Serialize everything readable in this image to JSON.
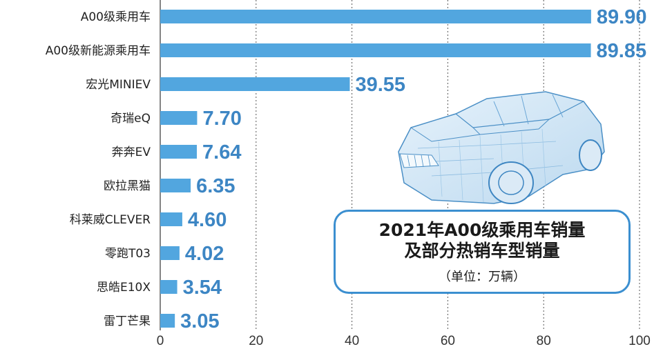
{
  "chart_data": {
    "type": "bar",
    "orientation": "horizontal",
    "title": "2021年A00级乘用车销量及部分热销车型销量",
    "title_lines": [
      "2021年A00级乘用车销量",
      "及部分热销车型销量"
    ],
    "subtitle": "（单位：万辆）",
    "categories": [
      "A00级乘用车",
      "A00级新能源乘用车",
      "宏光MINIEV",
      "奇瑞eQ",
      "奔奔EV",
      "欧拉黑猫",
      "科莱威CLEVER",
      "零跑T03",
      "思皓E10X",
      "雷丁芒果"
    ],
    "values": [
      89.9,
      89.85,
      39.55,
      7.7,
      7.64,
      6.35,
      4.6,
      4.02,
      3.54,
      3.05
    ],
    "value_labels": [
      "89.90",
      "89.85",
      "39.55",
      "7.70",
      "7.64",
      "6.35",
      "4.60",
      "4.02",
      "3.54",
      "3.05"
    ],
    "xlim": [
      0,
      100
    ],
    "x_ticks": [
      "0",
      "20",
      "40",
      "60",
      "80",
      "100"
    ],
    "xlabel": "",
    "ylabel": "",
    "grid": "vertical dashed",
    "bar_color": "#52a6df",
    "label_color": "#3d86c4",
    "box_border_color": "#3b8fd0"
  },
  "illustration": {
    "icon": "wireframe-suv-car-icon"
  }
}
